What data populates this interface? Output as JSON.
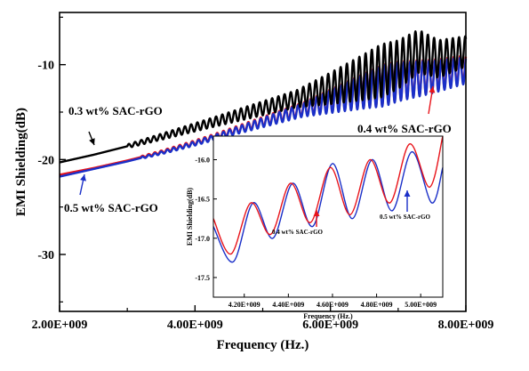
{
  "chart_data": [
    {
      "type": "line",
      "xlabel": "Frequency (Hz.)",
      "ylabel": "EMI Shielding(dB)",
      "xlim": [
        2000000000,
        8000000000
      ],
      "ylim": [
        -36,
        -4.5
      ],
      "x_ticks": [
        {
          "value": 2000000000,
          "label": "2.00E+009"
        },
        {
          "value": 4000000000,
          "label": "4.00E+009"
        },
        {
          "value": 6000000000,
          "label": "6.00E+009"
        },
        {
          "value": 8000000000,
          "label": "8.00E+009"
        }
      ],
      "y_ticks": [
        {
          "value": -10,
          "label": "-10"
        },
        {
          "value": -20,
          "label": "-20"
        },
        {
          "value": -30,
          "label": "-30"
        }
      ],
      "series": [
        {
          "name": "0.3 wt% SAC-rGO",
          "color": "#000000",
          "x": [
            2000000000,
            2500000000,
            3000000000,
            3500000000,
            4000000000,
            4500000000,
            5000000000,
            5500000000,
            6000000000,
            6500000000,
            7000000000,
            7300000000,
            7600000000,
            8000000000
          ],
          "y": [
            -20.3,
            -19.5,
            -18.6,
            -17.6,
            -16.6,
            -15.6,
            -14.6,
            -13.6,
            -12.5,
            -11.3,
            -10.0,
            -8.6,
            -9.4,
            -8.6
          ],
          "ripple_start": 3000000000,
          "ripple_period": 92000000,
          "ripple_amp": [
            0.2,
            0.5,
            0.9,
            2.8,
            1.6
          ]
        },
        {
          "name": "0.4 wt% SAC-rGO",
          "color": "#e8141b",
          "x": [
            2000000000,
            2500000000,
            3000000000,
            3500000000,
            4000000000,
            4500000000,
            5000000000,
            5500000000,
            6000000000,
            6500000000,
            7000000000,
            7500000000,
            8000000000
          ],
          "y": [
            -21.6,
            -20.9,
            -20.1,
            -19.2,
            -18.2,
            -17.1,
            -16.0,
            -14.9,
            -13.8,
            -12.7,
            -11.7,
            -11.2,
            -10.4
          ],
          "ripple_start": 3200000000,
          "ripple_period": 92000000,
          "ripple_amp": [
            0.1,
            0.3,
            0.7,
            2.2,
            1.4
          ]
        },
        {
          "name": "0.5 wt% SAC-rGO",
          "color": "#1a2fc8",
          "x": [
            2000000000,
            2500000000,
            3000000000,
            3500000000,
            4000000000,
            4500000000,
            5000000000,
            5500000000,
            6000000000,
            6500000000,
            7000000000,
            7500000000,
            8000000000
          ],
          "y": [
            -21.8,
            -21.0,
            -20.2,
            -19.3,
            -18.3,
            -17.2,
            -16.1,
            -15.0,
            -13.9,
            -12.8,
            -11.8,
            -11.3,
            -10.6
          ],
          "ripple_start": 3200000000,
          "ripple_period": 92000000,
          "ripple_amp": [
            0.1,
            0.3,
            0.7,
            2.2,
            1.4
          ]
        }
      ],
      "annotations": [
        {
          "text": "0.3 wt% SAC-rGO",
          "series": "0.3 wt% SAC-rGO"
        },
        {
          "text": "0.4 wt% SAC-rGO",
          "series": "0.4 wt% SAC-rGO"
        },
        {
          "text": "0.5 wt% SAC-rGO",
          "series": "0.5 wt% SAC-rGO"
        }
      ]
    },
    {
      "type": "line",
      "xlabel": "Frequency (Hz.)",
      "ylabel": "EMI Shielding(dB)",
      "xlim": [
        4060000000,
        5100000000
      ],
      "ylim": [
        -17.75,
        -15.7
      ],
      "x_ticks": [
        {
          "value": 4200000000,
          "label": "4.20E+009"
        },
        {
          "value": 4400000000,
          "label": "4.40E+009"
        },
        {
          "value": 4600000000,
          "label": "4.60E+009"
        },
        {
          "value": 4800000000,
          "label": "4.80E+009"
        },
        {
          "value": 5000000000,
          "label": "5.00E+009"
        }
      ],
      "y_ticks": [
        {
          "value": -16.0,
          "label": "-16.0"
        },
        {
          "value": -16.5,
          "label": "-16.5"
        },
        {
          "value": -17.0,
          "label": "-17.0"
        },
        {
          "value": -17.5,
          "label": "-17.5"
        }
      ],
      "series": [
        {
          "name": "0.4 wt% SAC-rGO",
          "color": "#e8141b",
          "x": [
            4060000000,
            4140000000,
            4230000000,
            4320000000,
            4410000000,
            4500000000,
            4590000000,
            4680000000,
            4770000000,
            4860000000,
            4950000000,
            5040000000,
            5100000000
          ],
          "y": [
            -16.75,
            -17.2,
            -16.55,
            -16.95,
            -16.3,
            -16.8,
            -16.1,
            -16.7,
            -16.0,
            -16.55,
            -15.8,
            -16.35,
            -15.7
          ]
        },
        {
          "name": "0.5 wt% SAC-rGO",
          "color": "#1a2fc8",
          "x": [
            4060000000,
            4150000000,
            4240000000,
            4330000000,
            4420000000,
            4510000000,
            4600000000,
            4690000000,
            4780000000,
            4870000000,
            4960000000,
            5050000000,
            5100000000
          ],
          "y": [
            -16.85,
            -17.3,
            -16.55,
            -17.0,
            -16.3,
            -16.85,
            -16.05,
            -16.75,
            -16.0,
            -16.65,
            -15.9,
            -16.55,
            -16.1
          ]
        }
      ],
      "annotations": [
        {
          "text": "0.4 wt% SAC-rGO",
          "series": "0.4 wt% SAC-rGO"
        },
        {
          "text": "0.5 wt% SAC-rGO",
          "series": "0.5 wt% SAC-rGO"
        }
      ]
    }
  ]
}
